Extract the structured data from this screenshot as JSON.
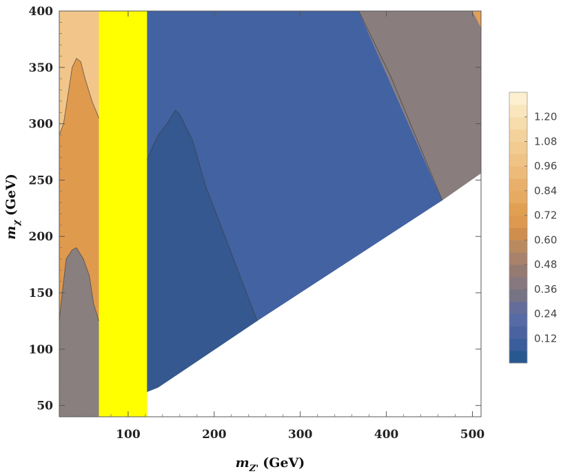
{
  "chart_data": {
    "type": "heatmap",
    "subtype": "filled-contour",
    "title": "",
    "xlabel": {
      "symbol": "m",
      "subscript": "Z'",
      "unit": "(GeV)"
    },
    "ylabel": {
      "symbol": "m",
      "subscript": "χ",
      "unit": "(GeV)"
    },
    "xlim": [
      20,
      510
    ],
    "ylim": [
      40,
      400
    ],
    "x_ticks": [
      100,
      200,
      300,
      400,
      500
    ],
    "y_ticks": [
      50,
      100,
      150,
      200,
      250,
      300,
      350,
      400
    ],
    "colorbar": {
      "ticks": [
        "0.12",
        "0.24",
        "0.36",
        "0.48",
        "0.60",
        "0.72",
        "0.84",
        "0.96",
        "1.08",
        "1.20"
      ],
      "levels": [
        0,
        0.06,
        0.12,
        0.18,
        0.24,
        0.3,
        0.36,
        0.42,
        0.48,
        0.54,
        0.6,
        0.66,
        0.72,
        0.78,
        0.84,
        0.9,
        0.96,
        1.02,
        1.08,
        1.14,
        1.2,
        1.26,
        1.32
      ],
      "colors": [
        "#285890",
        "#3a5d9b",
        "#4a63a0",
        "#566aa6",
        "#646d9a",
        "#767385",
        "#86787e",
        "#957a72",
        "#a8826a",
        "#b98a60",
        "#cf8e4e",
        "#dc994f",
        "#e19f52",
        "#e6aa61",
        "#e9b06b",
        "#edbb79",
        "#efc385",
        "#f2cb90",
        "#f4d29c",
        "#f7dcac",
        "#faE6bd",
        "#fcf0d0"
      ]
    },
    "regions": [
      {
        "name": "left-low",
        "value": 0.42,
        "color": "#8a7f7f",
        "polygon": [
          [
            20,
            40
          ],
          [
            66,
            40
          ],
          [
            66,
            125
          ],
          [
            60,
            140
          ],
          [
            55,
            165
          ],
          [
            48,
            180
          ],
          [
            40,
            190
          ],
          [
            35,
            188
          ],
          [
            28,
            180
          ],
          [
            22,
            140
          ],
          [
            20,
            125
          ]
        ]
      },
      {
        "name": "left-mid",
        "value": 0.72,
        "color": "#e09a4e",
        "polygon": [
          [
            20,
            125
          ],
          [
            22,
            140
          ],
          [
            28,
            180
          ],
          [
            35,
            188
          ],
          [
            40,
            190
          ],
          [
            48,
            180
          ],
          [
            55,
            165
          ],
          [
            60,
            140
          ],
          [
            66,
            125
          ],
          [
            66,
            305
          ],
          [
            58,
            320
          ],
          [
            50,
            340
          ],
          [
            45,
            355
          ],
          [
            40,
            358
          ],
          [
            35,
            350
          ],
          [
            30,
            325
          ],
          [
            25,
            300
          ],
          [
            20,
            290
          ]
        ]
      },
      {
        "name": "left-high",
        "value": 1.02,
        "color": "#f2c68a",
        "polygon": [
          [
            20,
            290
          ],
          [
            25,
            300
          ],
          [
            30,
            325
          ],
          [
            35,
            350
          ],
          [
            40,
            358
          ],
          [
            45,
            355
          ],
          [
            50,
            340
          ],
          [
            58,
            320
          ],
          [
            66,
            305
          ],
          [
            66,
            400
          ],
          [
            20,
            400
          ]
        ]
      },
      {
        "name": "excluded-band",
        "value": null,
        "color": "#ffff00",
        "polygon": [
          [
            66,
            40
          ],
          [
            122,
            40
          ],
          [
            122,
            400
          ],
          [
            66,
            400
          ]
        ]
      },
      {
        "name": "main-blue",
        "value": 0.24,
        "color": "#4262a2",
        "polygon": [
          [
            122,
            62
          ],
          [
            135,
            66
          ],
          [
            250,
            125
          ],
          [
            465,
            232
          ],
          [
            368,
            400
          ],
          [
            122,
            400
          ]
        ]
      },
      {
        "name": "dark-blue",
        "value": 0.08,
        "color": "#34588f",
        "polygon": [
          [
            122,
            62
          ],
          [
            135,
            66
          ],
          [
            250,
            125
          ],
          [
            230,
            165
          ],
          [
            210,
            205
          ],
          [
            190,
            245
          ],
          [
            175,
            285
          ],
          [
            160,
            308
          ],
          [
            155,
            312
          ],
          [
            145,
            300
          ],
          [
            135,
            290
          ],
          [
            128,
            280
          ],
          [
            122,
            268
          ]
        ]
      },
      {
        "name": "upper-right-gray",
        "value": 0.42,
        "color": "#897d7d",
        "polygon": [
          [
            368,
            400
          ],
          [
            465,
            232
          ],
          [
            510,
            256
          ],
          [
            510,
            400
          ]
        ]
      },
      {
        "name": "upper-right-corner",
        "value": 0.72,
        "color": "#e3a05a",
        "polygon": [
          [
            500,
            400
          ],
          [
            510,
            385
          ],
          [
            510,
            400
          ]
        ]
      }
    ],
    "contours": [
      {
        "name": "upper-right-boundary",
        "points": [
          [
            368,
            400
          ],
          [
            405,
            342
          ],
          [
            465,
            232
          ]
        ]
      },
      {
        "name": "dark-blue-boundary",
        "points": [
          [
            122,
            268
          ],
          [
            135,
            290
          ],
          [
            145,
            300
          ],
          [
            155,
            312
          ],
          [
            160,
            308
          ],
          [
            175,
            285
          ],
          [
            190,
            245
          ],
          [
            210,
            205
          ],
          [
            230,
            165
          ],
          [
            250,
            125
          ]
        ]
      },
      {
        "name": "left-low-boundary",
        "points": [
          [
            20,
            125
          ],
          [
            22,
            140
          ],
          [
            28,
            180
          ],
          [
            35,
            188
          ],
          [
            40,
            190
          ],
          [
            48,
            180
          ],
          [
            55,
            165
          ],
          [
            60,
            140
          ],
          [
            66,
            125
          ]
        ]
      },
      {
        "name": "left-mid-boundary",
        "points": [
          [
            20,
            290
          ],
          [
            25,
            300
          ],
          [
            30,
            325
          ],
          [
            35,
            350
          ],
          [
            40,
            358
          ],
          [
            45,
            355
          ],
          [
            50,
            340
          ],
          [
            58,
            320
          ],
          [
            66,
            305
          ]
        ]
      }
    ],
    "grid": false,
    "legend": "colorbar right"
  }
}
